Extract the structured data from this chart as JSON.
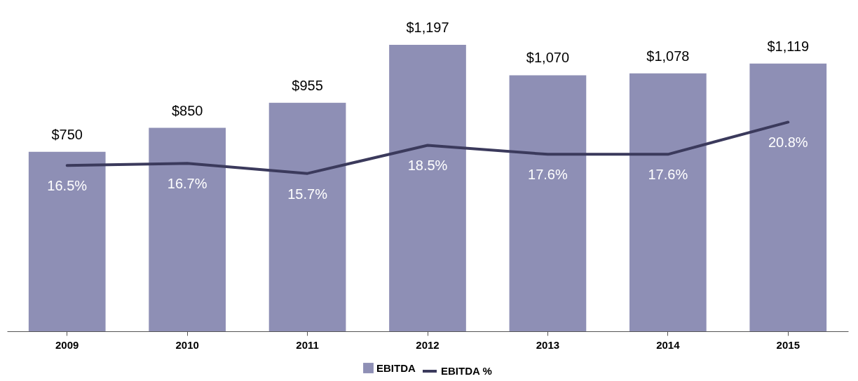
{
  "chart_data": {
    "type": "bar",
    "categories": [
      "2009",
      "2010",
      "2011",
      "2012",
      "2013",
      "2014",
      "2015"
    ],
    "series": [
      {
        "name": "EBITDA",
        "color": "#8e8fb5",
        "values": [
          750,
          850,
          955,
          1197,
          1070,
          1078,
          1119
        ],
        "value_labels": [
          "$750",
          "$850",
          "$955",
          "$1,197",
          "$1,070",
          "$1,078",
          "$1,119"
        ]
      },
      {
        "name": "EBITDA %",
        "type": "line",
        "axis": "y2",
        "color": "#3b3a5c",
        "values": [
          16.5,
          16.7,
          15.7,
          18.5,
          17.6,
          17.6,
          20.8
        ],
        "value_labels": [
          "16.5%",
          "16.7%",
          "15.7%",
          "18.5%",
          "17.6%",
          "17.6%",
          "20.8%"
        ]
      }
    ],
    "legend": "bottom",
    "marker": "none",
    "line_style": "solid"
  }
}
